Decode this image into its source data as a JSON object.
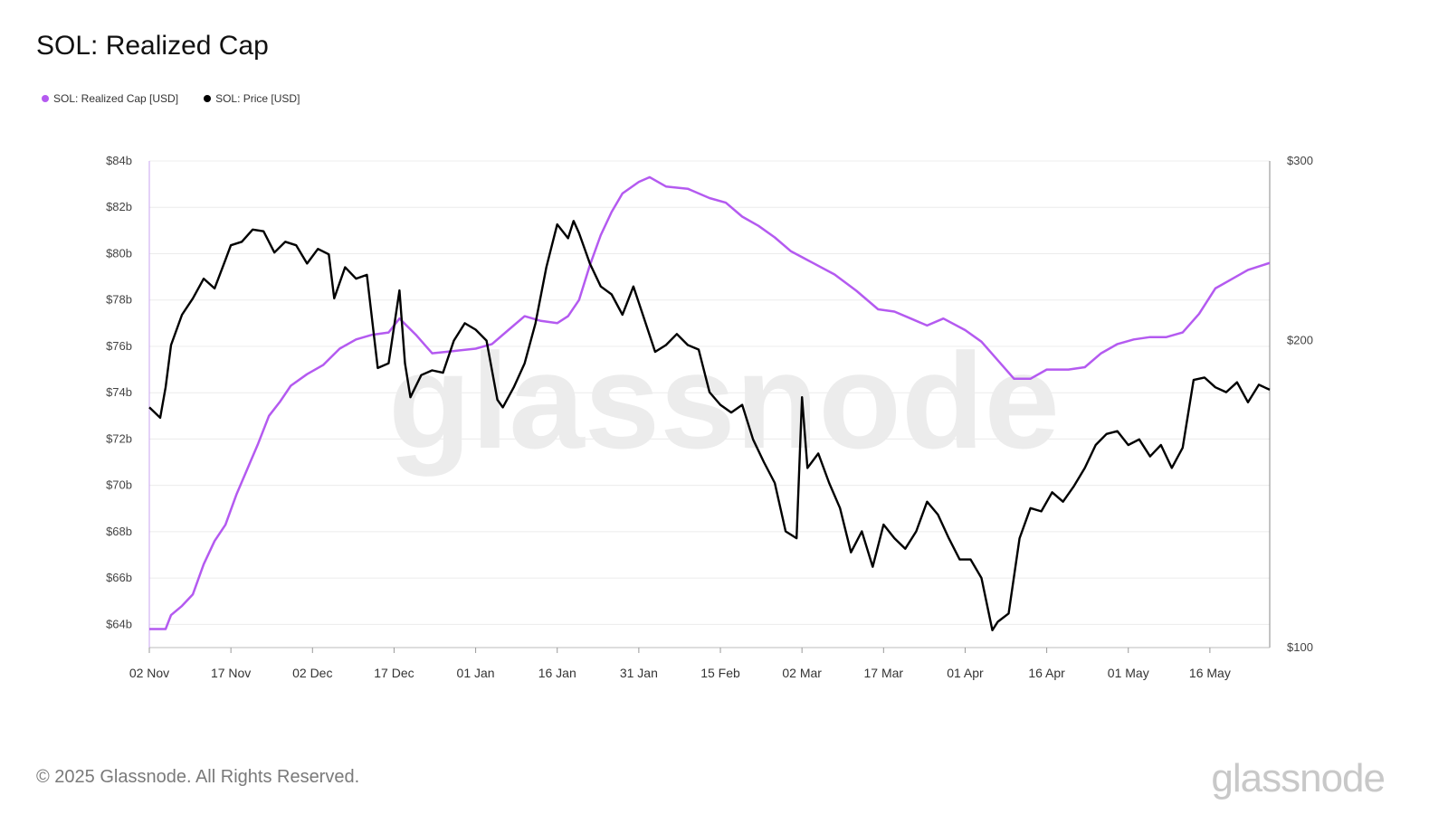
{
  "title": "SOL: Realized Cap",
  "footer": {
    "copyright": "© 2025 Glassnode. All Rights Reserved.",
    "logo": "glassnode",
    "watermark": "glassnode"
  },
  "colors": {
    "realized_cap": "#b45af0",
    "price": "#000000",
    "grid": "#ececec",
    "axis": "#999999"
  },
  "chart_data": {
    "type": "line",
    "title": "SOL: Realized Cap",
    "legend_position": "top-left",
    "grid": true,
    "x_range": [
      "2024-11-02",
      "2025-05-27"
    ],
    "x_ticks": [
      {
        "date": "2024-11-02",
        "label": "02 Nov"
      },
      {
        "date": "2024-11-17",
        "label": "17 Nov"
      },
      {
        "date": "2024-12-02",
        "label": "02 Dec"
      },
      {
        "date": "2024-12-17",
        "label": "17 Dec"
      },
      {
        "date": "2025-01-01",
        "label": "01 Jan"
      },
      {
        "date": "2025-01-16",
        "label": "16 Jan"
      },
      {
        "date": "2025-01-31",
        "label": "31 Jan"
      },
      {
        "date": "2025-02-15",
        "label": "15 Feb"
      },
      {
        "date": "2025-03-02",
        "label": "02 Mar"
      },
      {
        "date": "2025-03-17",
        "label": "17 Mar"
      },
      {
        "date": "2025-04-01",
        "label": "01 Apr"
      },
      {
        "date": "2025-04-16",
        "label": "16 Apr"
      },
      {
        "date": "2025-05-01",
        "label": "01 May"
      },
      {
        "date": "2025-05-16",
        "label": "16 May"
      }
    ],
    "y_left": {
      "range": [
        63000000000,
        84000000000
      ],
      "ticks": [
        {
          "value": 64000000000,
          "label": "$64b"
        },
        {
          "value": 66000000000,
          "label": "$66b"
        },
        {
          "value": 68000000000,
          "label": "$68b"
        },
        {
          "value": 70000000000,
          "label": "$70b"
        },
        {
          "value": 72000000000,
          "label": "$72b"
        },
        {
          "value": 74000000000,
          "label": "$74b"
        },
        {
          "value": 76000000000,
          "label": "$76b"
        },
        {
          "value": 78000000000,
          "label": "$78b"
        },
        {
          "value": 80000000000,
          "label": "$80b"
        },
        {
          "value": 82000000000,
          "label": "$82b"
        },
        {
          "value": 84000000000,
          "label": "$84b"
        }
      ]
    },
    "y_right": {
      "scale": "log",
      "range": [
        100,
        300
      ],
      "ticks": [
        {
          "value": 100,
          "label": "$100"
        },
        {
          "value": 200,
          "label": "$200"
        },
        {
          "value": 300,
          "label": "$300"
        }
      ]
    },
    "series": [
      {
        "name": "SOL: Realized Cap [USD]",
        "axis": "left",
        "x": [
          "2024-11-02",
          "2024-11-05",
          "2024-11-06",
          "2024-11-08",
          "2024-11-10",
          "2024-11-12",
          "2024-11-14",
          "2024-11-16",
          "2024-11-18",
          "2024-11-20",
          "2024-11-22",
          "2024-11-24",
          "2024-11-26",
          "2024-11-28",
          "2024-12-01",
          "2024-12-04",
          "2024-12-07",
          "2024-12-10",
          "2024-12-13",
          "2024-12-16",
          "2024-12-18",
          "2024-12-21",
          "2024-12-24",
          "2024-12-28",
          "2025-01-01",
          "2025-01-04",
          "2025-01-07",
          "2025-01-10",
          "2025-01-13",
          "2025-01-16",
          "2025-01-18",
          "2025-01-20",
          "2025-01-22",
          "2025-01-24",
          "2025-01-26",
          "2025-01-28",
          "2025-01-31",
          "2025-02-02",
          "2025-02-05",
          "2025-02-09",
          "2025-02-13",
          "2025-02-16",
          "2025-02-19",
          "2025-02-22",
          "2025-02-25",
          "2025-02-28",
          "2025-03-04",
          "2025-03-08",
          "2025-03-12",
          "2025-03-16",
          "2025-03-19",
          "2025-03-22",
          "2025-03-25",
          "2025-03-28",
          "2025-04-01",
          "2025-04-04",
          "2025-04-07",
          "2025-04-10",
          "2025-04-13",
          "2025-04-16",
          "2025-04-20",
          "2025-04-23",
          "2025-04-26",
          "2025-04-29",
          "2025-05-02",
          "2025-05-05",
          "2025-05-08",
          "2025-05-11",
          "2025-05-14",
          "2025-05-17",
          "2025-05-20",
          "2025-05-23",
          "2025-05-27"
        ],
        "values": [
          63800000000.0,
          63800000000.0,
          64400000000.0,
          64800000000.0,
          65300000000.0,
          66600000000.0,
          67600000000.0,
          68300000000.0,
          69600000000.0,
          70700000000.0,
          71800000000.0,
          73000000000.0,
          73600000000.0,
          74300000000.0,
          74800000000.0,
          75200000000.0,
          75900000000.0,
          76300000000.0,
          76500000000.0,
          76600000000.0,
          77200000000.0,
          76500000000.0,
          75700000000.0,
          75800000000.0,
          75900000000.0,
          76100000000.0,
          76700000000.0,
          77300000000.0,
          77100000000.0,
          77000000000.0,
          77300000000.0,
          78000000000.0,
          79500000000.0,
          80800000000.0,
          81800000000.0,
          82600000000.0,
          83100000000.0,
          83300000000.0,
          82900000000.0,
          82800000000.0,
          82400000000.0,
          82200000000.0,
          81600000000.0,
          81200000000.0,
          80700000000.0,
          80100000000.0,
          79600000000.0,
          79100000000.0,
          78400000000.0,
          77600000000.0,
          77500000000.0,
          77200000000.0,
          76900000000.0,
          77200000000.0,
          76700000000.0,
          76200000000.0,
          75400000000.0,
          74600000000.0,
          74600000000.0,
          75000000000.0,
          75000000000.0,
          75100000000.0,
          75700000000.0,
          76100000000.0,
          76300000000.0,
          76400000000.0,
          76400000000.0,
          76600000000.0,
          77400000000.0,
          78500000000.0,
          78900000000.0,
          79300000000.0,
          79600000000.0
        ]
      },
      {
        "name": "SOL: Price [USD]",
        "axis": "right",
        "x": [
          "2024-11-02",
          "2024-11-04",
          "2024-11-05",
          "2024-11-06",
          "2024-11-08",
          "2024-11-10",
          "2024-11-12",
          "2024-11-14",
          "2024-11-16",
          "2024-11-17",
          "2024-11-19",
          "2024-11-21",
          "2024-11-23",
          "2024-11-25",
          "2024-11-27",
          "2024-11-29",
          "2024-12-01",
          "2024-12-03",
          "2024-12-05",
          "2024-12-06",
          "2024-12-08",
          "2024-12-10",
          "2024-12-12",
          "2024-12-14",
          "2024-12-16",
          "2024-12-18",
          "2024-12-19",
          "2024-12-20",
          "2024-12-22",
          "2024-12-24",
          "2024-12-26",
          "2024-12-28",
          "2024-12-30",
          "2025-01-01",
          "2025-01-03",
          "2025-01-05",
          "2025-01-06",
          "2025-01-08",
          "2025-01-10",
          "2025-01-12",
          "2025-01-14",
          "2025-01-16",
          "2025-01-18",
          "2025-01-19",
          "2025-01-20",
          "2025-01-22",
          "2025-01-24",
          "2025-01-26",
          "2025-01-28",
          "2025-01-30",
          "2025-02-01",
          "2025-02-03",
          "2025-02-05",
          "2025-02-07",
          "2025-02-09",
          "2025-02-11",
          "2025-02-13",
          "2025-02-15",
          "2025-02-17",
          "2025-02-19",
          "2025-02-21",
          "2025-02-23",
          "2025-02-25",
          "2025-02-27",
          "2025-03-01",
          "2025-03-02",
          "2025-03-03",
          "2025-03-05",
          "2025-03-07",
          "2025-03-09",
          "2025-03-11",
          "2025-03-13",
          "2025-03-15",
          "2025-03-17",
          "2025-03-19",
          "2025-03-21",
          "2025-03-23",
          "2025-03-25",
          "2025-03-27",
          "2025-03-29",
          "2025-03-31",
          "2025-04-02",
          "2025-04-04",
          "2025-04-06",
          "2025-04-07",
          "2025-04-09",
          "2025-04-11",
          "2025-04-13",
          "2025-04-15",
          "2025-04-17",
          "2025-04-19",
          "2025-04-21",
          "2025-04-23",
          "2025-04-25",
          "2025-04-27",
          "2025-04-29",
          "2025-05-01",
          "2025-05-03",
          "2025-05-05",
          "2025-05-07",
          "2025-05-09",
          "2025-05-11",
          "2025-05-13",
          "2025-05-15",
          "2025-05-17",
          "2025-05-19",
          "2025-05-21",
          "2025-05-23",
          "2025-05-25",
          "2025-05-27"
        ],
        "values": [
          172,
          168,
          180,
          198,
          212,
          220,
          230,
          225,
          240,
          248,
          250,
          257,
          256,
          244,
          250,
          248,
          238,
          246,
          243,
          220,
          236,
          230,
          232,
          188,
          190,
          224,
          190,
          176,
          185,
          187,
          186,
          200,
          208,
          205,
          200,
          175,
          172,
          180,
          190,
          208,
          236,
          260,
          252,
          262,
          255,
          238,
          226,
          222,
          212,
          226,
          210,
          195,
          198,
          203,
          198,
          196,
          178,
          173,
          170,
          173,
          160,
          152,
          145,
          130,
          128,
          176,
          150,
          155,
          145,
          137,
          124,
          130,
          120,
          132,
          128,
          125,
          130,
          139,
          135,
          128,
          122,
          122,
          117,
          104,
          106,
          108,
          128,
          137,
          136,
          142,
          139,
          144,
          150,
          158,
          162,
          163,
          158,
          160,
          154,
          158,
          150,
          157,
          183,
          184,
          180,
          178,
          182,
          174,
          181,
          179
        ]
      }
    ]
  }
}
